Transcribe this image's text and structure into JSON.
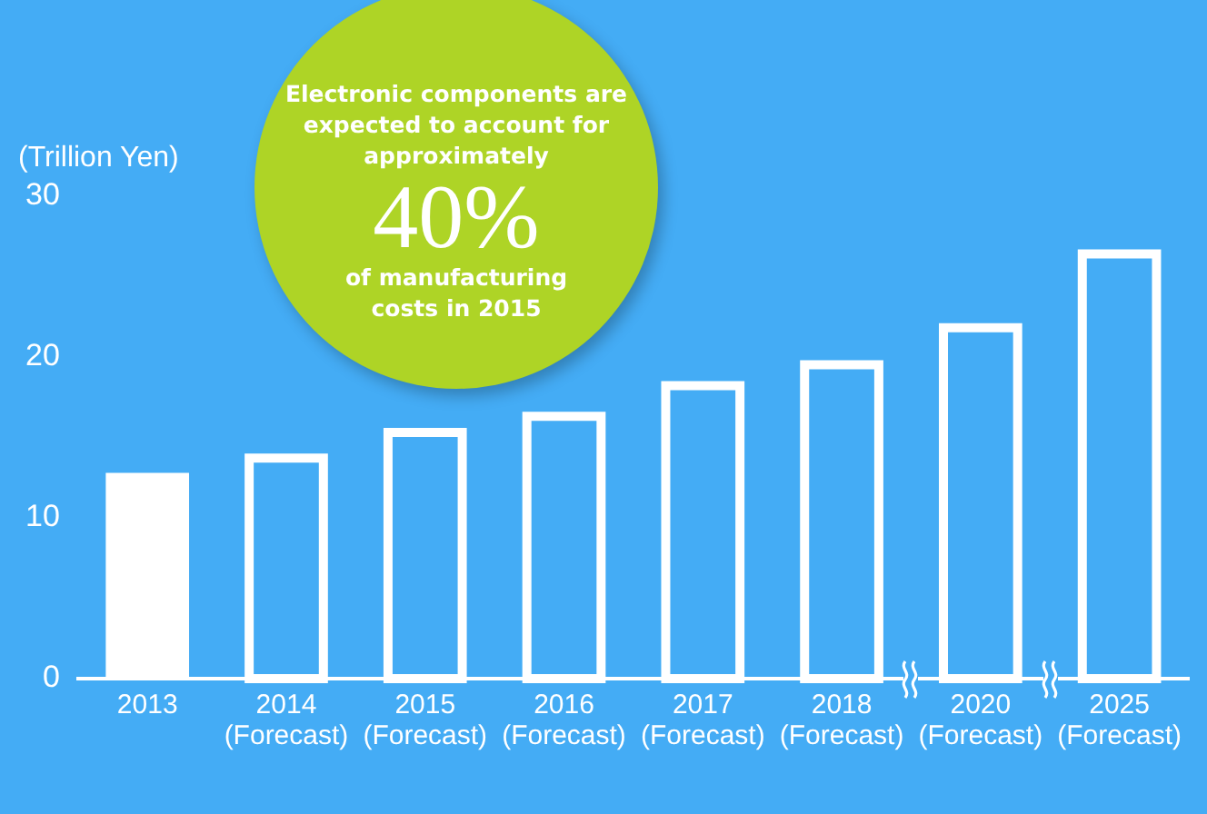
{
  "chart_data": {
    "type": "bar",
    "ylabel": "(Trillion Yen)",
    "categories": [
      "2013",
      "2014\n(Forecast)",
      "2015\n(Forecast)",
      "2016\n(Forecast)",
      "2017\n(Forecast)",
      "2018\n(Forecast)",
      "2020\n(Forecast)",
      "2025\n(Forecast)"
    ],
    "values": [
      12.8,
      14.0,
      15.6,
      16.6,
      18.5,
      19.8,
      22.1,
      26.7
    ],
    "colors": [
      "#ffffff",
      "#ffffff",
      "#ffffff",
      "#ffffff",
      "#ffffff",
      "#ffffff",
      "#ffffff",
      "#ffffff"
    ],
    "ylim": [
      0,
      30
    ],
    "yticks": [
      0,
      10,
      20,
      30
    ],
    "grid": false,
    "legend": false,
    "annotations": [
      "Electronic components are expected to account for approximately",
      "40%",
      "of manufacturing costs in 2015"
    ]
  }
}
